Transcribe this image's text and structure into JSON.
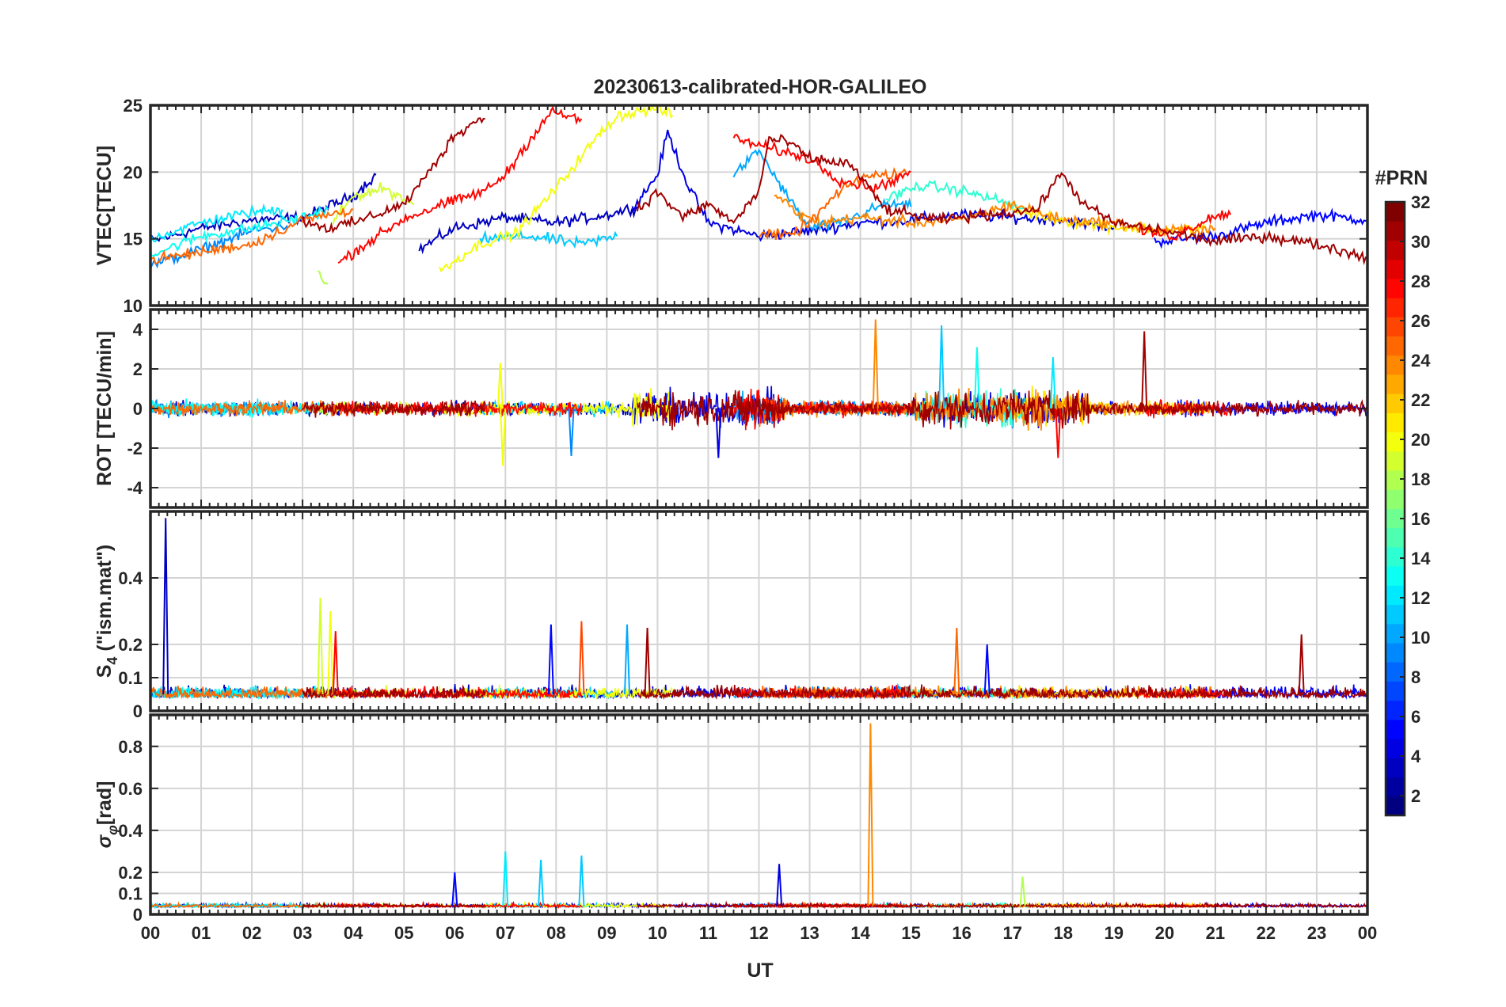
{
  "chart_data": {
    "type": "line",
    "title": "20230613-calibrated-HOR-GALILEO",
    "xlabel": "UT",
    "x_range": [
      0,
      24
    ],
    "x_tick_labels": [
      "00",
      "01",
      "02",
      "03",
      "04",
      "05",
      "06",
      "07",
      "08",
      "09",
      "10",
      "11",
      "12",
      "13",
      "14",
      "15",
      "16",
      "17",
      "18",
      "19",
      "20",
      "21",
      "22",
      "23",
      "00"
    ],
    "grid": true,
    "colormap": "jet",
    "colorbar": {
      "label": "#PRN",
      "range": [
        1,
        32
      ],
      "tick_labels": [
        "2",
        "4",
        "6",
        "8",
        "10",
        "12",
        "14",
        "16",
        "18",
        "20",
        "22",
        "24",
        "26",
        "28",
        "30",
        "32"
      ],
      "placement": "right"
    },
    "panels": [
      {
        "id": "vtec",
        "ylabel": "VTEC[TECU]",
        "ylim": [
          10,
          25
        ],
        "y_tick_labels": [
          "10",
          "15",
          "20",
          "25"
        ],
        "series": [
          {
            "prn": 3,
            "points": [
              [
                0,
                14.8
              ],
              [
                1,
                15.8
              ],
              [
                2,
                16.4
              ],
              [
                3,
                16.6
              ],
              [
                4,
                18.2
              ],
              [
                4.45,
                19.8
              ]
            ]
          },
          {
            "prn": 3,
            "points": [
              [
                5.3,
                14.2
              ],
              [
                6,
                15.8
              ],
              [
                7,
                16.6
              ],
              [
                8,
                16.2
              ],
              [
                9,
                16.8
              ],
              [
                9.6,
                17.4
              ]
            ]
          },
          {
            "prn": 4,
            "points": [
              [
                9.5,
                17.2
              ],
              [
                10,
                19.8
              ],
              [
                10.2,
                23
              ],
              [
                10.6,
                19
              ],
              [
                11,
                16.2
              ],
              [
                12,
                15.2
              ],
              [
                13,
                15.6
              ],
              [
                14,
                16.2
              ],
              [
                15,
                16.4
              ],
              [
                16,
                16.8
              ],
              [
                17,
                16.6
              ],
              [
                18,
                16.4
              ],
              [
                19,
                15.8
              ]
            ]
          },
          {
            "prn": 5,
            "points": [
              [
                19.8,
                14.8
              ],
              [
                21,
                15.2
              ],
              [
                22,
                16.2
              ],
              [
                23,
                16.8
              ],
              [
                24,
                16.4
              ]
            ]
          },
          {
            "prn": 9,
            "points": [
              [
                0,
                13
              ],
              [
                1,
                14.2
              ],
              [
                2,
                15.6
              ],
              [
                2.7,
                16
              ]
            ]
          },
          {
            "prn": 10,
            "points": [
              [
                11.5,
                19.8
              ],
              [
                12,
                21.6
              ],
              [
                12.5,
                18.5
              ],
              [
                13,
                15.8
              ],
              [
                13.6,
                16.2
              ],
              [
                14.5,
                17.6
              ],
              [
                15,
                17.4
              ]
            ]
          },
          {
            "prn": 11,
            "points": [
              [
                6.5,
                15
              ],
              [
                7.5,
                15.2
              ],
              [
                8.5,
                14.6
              ],
              [
                9.2,
                15.2
              ]
            ]
          },
          {
            "prn": 12,
            "points": [
              [
                0,
                15
              ],
              [
                1,
                16.2
              ],
              [
                2,
                17
              ],
              [
                2.6,
                17.2
              ]
            ]
          },
          {
            "prn": 13,
            "points": [
              [
                0,
                13.8
              ],
              [
                1,
                15.2
              ],
              [
                2,
                15.8
              ],
              [
                3,
                16.6
              ],
              [
                3.5,
                17.2
              ]
            ]
          },
          {
            "prn": 14,
            "points": [
              [
                14.5,
                18
              ],
              [
                15.2,
                19
              ],
              [
                16,
                18.6
              ],
              [
                16.8,
                17.8
              ],
              [
                17.3,
                17
              ]
            ]
          },
          {
            "prn": 18,
            "points": [
              [
                3.3,
                12.4
              ],
              [
                3.5,
                11.6
              ]
            ]
          },
          {
            "prn": 19,
            "points": [
              [
                3.6,
                16.2
              ],
              [
                4,
                18.2
              ],
              [
                4.6,
                18.8
              ],
              [
                5.2,
                17.6
              ]
            ]
          },
          {
            "prn": 20,
            "points": [
              [
                5.7,
                12.6
              ],
              [
                6.5,
                14.6
              ],
              [
                7.2,
                15.4
              ],
              [
                8,
                18.8
              ],
              [
                8.8,
                22.6
              ],
              [
                9.2,
                24.2
              ],
              [
                10,
                24.8
              ],
              [
                10.3,
                24.2
              ]
            ]
          },
          {
            "prn": 21,
            "points": [
              [
                17,
                17.2
              ],
              [
                18,
                16.4
              ],
              [
                19.2,
                15.8
              ],
              [
                20,
                15.6
              ],
              [
                20.8,
                15.8
              ]
            ]
          },
          {
            "prn": 24,
            "points": [
              [
                12.3,
                18.4
              ],
              [
                12.8,
                16.8
              ],
              [
                13.2,
                16.2
              ],
              [
                14,
                16.6
              ],
              [
                15,
                16.2
              ],
              [
                16,
                16.4
              ],
              [
                17,
                17.6
              ],
              [
                18,
                16.4
              ],
              [
                19,
                16.2
              ],
              [
                20,
                15.6
              ],
              [
                21,
                15.8
              ]
            ]
          },
          {
            "prn": 25,
            "points": [
              [
                0,
                13.4
              ],
              [
                1,
                14
              ],
              [
                2,
                14.6
              ],
              [
                3,
                16.4
              ],
              [
                4,
                17.2
              ]
            ]
          },
          {
            "prn": 25,
            "points": [
              [
                12,
                15.4
              ],
              [
                12.6,
                15.2
              ],
              [
                13,
                16.2
              ],
              [
                13.5,
                18.2
              ],
              [
                14,
                19.6
              ],
              [
                14.5,
                19.8
              ],
              [
                14.9,
                20
              ]
            ]
          },
          {
            "prn": 28,
            "points": [
              [
                3.7,
                13.2
              ],
              [
                4.2,
                14.5
              ],
              [
                5,
                16.5
              ],
              [
                5.8,
                17.6
              ],
              [
                6.6,
                18.6
              ],
              [
                7,
                19.8
              ],
              [
                7.4,
                22
              ],
              [
                7.9,
                24.5
              ],
              [
                8.2,
                24.2
              ],
              [
                8.5,
                24
              ]
            ]
          },
          {
            "prn": 28,
            "points": [
              [
                11.5,
                22.5
              ],
              [
                12.2,
                21.8
              ],
              [
                13,
                21
              ],
              [
                13.6,
                19.4
              ],
              [
                14.3,
                18.8
              ],
              [
                15,
                20
              ]
            ]
          },
          {
            "prn": 28,
            "points": [
              [
                19.5,
                15.6
              ],
              [
                20.2,
                15.2
              ],
              [
                21,
                16.8
              ],
              [
                21.3,
                16.8
              ]
            ]
          },
          {
            "prn": 31,
            "points": [
              [
                3,
                16.4
              ],
              [
                3.5,
                15.8
              ],
              [
                4,
                16.2
              ],
              [
                5,
                17.6
              ],
              [
                5.5,
                20
              ],
              [
                6,
                22.8
              ],
              [
                6.5,
                24
              ],
              [
                6.6,
                24
              ]
            ]
          },
          {
            "prn": 31,
            "points": [
              [
                9.6,
                17.2
              ],
              [
                10,
                18.5
              ],
              [
                10.5,
                16.6
              ],
              [
                11,
                17.6
              ],
              [
                11.5,
                16.2
              ],
              [
                12,
                18.6
              ],
              [
                12.2,
                22.5
              ],
              [
                12.6,
                22.2
              ],
              [
                13,
                21
              ],
              [
                13.8,
                20.6
              ],
              [
                14.5,
                17.2
              ],
              [
                15.5,
                16.4
              ],
              [
                16.5,
                16.8
              ],
              [
                17.5,
                17.2
              ],
              [
                17.8,
                19.2
              ],
              [
                18,
                19.8
              ],
              [
                18.4,
                17.6
              ],
              [
                19,
                16.2
              ],
              [
                20,
                15.6
              ],
              [
                21,
                14.8
              ],
              [
                22,
                15.2
              ],
              [
                23,
                14.6
              ],
              [
                24,
                13.6
              ]
            ]
          }
        ]
      },
      {
        "id": "rot",
        "ylabel": "ROT [TECU/min]",
        "ylim": [
          -5,
          5
        ],
        "y_tick_labels": [
          "-4",
          "-2",
          "0",
          "2",
          "4"
        ],
        "spikes": [
          {
            "prn": 20,
            "x": 6.9,
            "y": 2.3
          },
          {
            "prn": 20,
            "x": 6.95,
            "y": -2.9
          },
          {
            "prn": 24,
            "x": 14.3,
            "y": 4.5
          },
          {
            "prn": 11,
            "x": 15.6,
            "y": 4.2
          },
          {
            "prn": 31,
            "x": 19.6,
            "y": 3.9
          },
          {
            "prn": 13,
            "x": 16.3,
            "y": 3.1
          },
          {
            "prn": 12,
            "x": 17.8,
            "y": 2.6
          },
          {
            "prn": 4,
            "x": 11.2,
            "y": -2.5
          },
          {
            "prn": 28,
            "x": 17.9,
            "y": -2.5
          },
          {
            "prn": 9,
            "x": 8.3,
            "y": -2.4
          }
        ]
      },
      {
        "id": "s4",
        "ylabel": "S4 (\"ism.mat\")",
        "ylabel_main": "S",
        "ylabel_sub": "4",
        "ylabel_rest": " (\"ism.mat\")",
        "ylim": [
          0,
          0.6
        ],
        "y_tick_labels": [
          "0",
          "0.1",
          "0.2",
          "0.4"
        ],
        "spikes": [
          {
            "prn": 3,
            "x": 0.3,
            "y": 0.58
          },
          {
            "prn": 19,
            "x": 3.35,
            "y": 0.34
          },
          {
            "prn": 20,
            "x": 3.55,
            "y": 0.3
          },
          {
            "prn": 28,
            "x": 3.65,
            "y": 0.24
          },
          {
            "prn": 5,
            "x": 7.9,
            "y": 0.26
          },
          {
            "prn": 26,
            "x": 8.5,
            "y": 0.27
          },
          {
            "prn": 10,
            "x": 9.4,
            "y": 0.26
          },
          {
            "prn": 31,
            "x": 9.8,
            "y": 0.25
          },
          {
            "prn": 25,
            "x": 15.9,
            "y": 0.25
          },
          {
            "prn": 5,
            "x": 16.5,
            "y": 0.2
          },
          {
            "prn": 31,
            "x": 22.7,
            "y": 0.23
          }
        ]
      },
      {
        "id": "sigma_phi",
        "ylabel": "σφ[rad]",
        "ylabel_main": "σ",
        "ylabel_sub": "φ",
        "ylabel_rest": "[rad]",
        "ylim": [
          0,
          0.95
        ],
        "y_tick_labels": [
          "0",
          "0.1",
          "0.2",
          "0.4",
          "0.6",
          "0.8"
        ],
        "spikes": [
          {
            "prn": 24,
            "x": 14.2,
            "y": 0.91
          },
          {
            "prn": 12,
            "x": 7.0,
            "y": 0.3
          },
          {
            "prn": 11,
            "x": 8.5,
            "y": 0.28
          },
          {
            "prn": 11,
            "x": 7.7,
            "y": 0.26
          },
          {
            "prn": 4,
            "x": 12.4,
            "y": 0.24
          },
          {
            "prn": 5,
            "x": 6.0,
            "y": 0.2
          },
          {
            "prn": 18,
            "x": 17.2,
            "y": 0.18
          }
        ]
      }
    ]
  }
}
